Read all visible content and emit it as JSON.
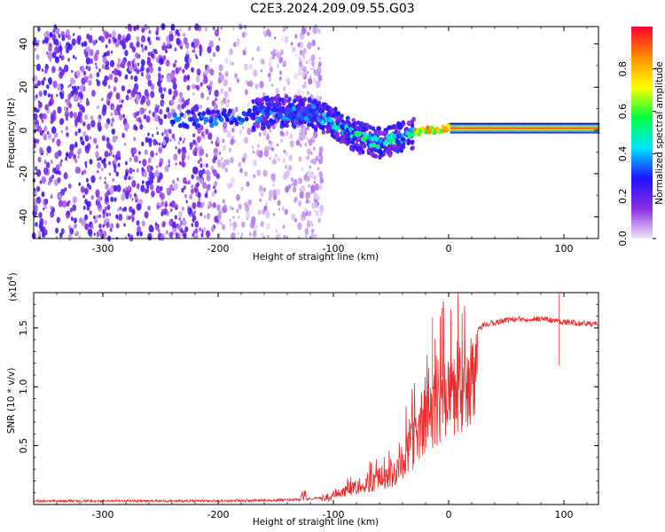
{
  "title": "C2E3.2024.209.09.55.G03",
  "chart_data": [
    {
      "type": "heatmap",
      "xlabel": "Height of straight line (km)",
      "ylabel": "Frequency (Hz)",
      "xlim": [
        -360,
        130
      ],
      "ylim": [
        -50,
        48
      ],
      "xticks": [
        -300,
        -200,
        -100,
        0,
        100
      ],
      "yticks": [
        -40,
        -20,
        0,
        20,
        40
      ],
      "colorbar": {
        "label": "Normalized spectral amplitude",
        "range": [
          0,
          1
        ],
        "ticks": [
          0.0,
          0.2,
          0.4,
          0.6,
          0.8
        ],
        "colors": [
          "#f3e6fb",
          "#8a2be2",
          "#1e14ff",
          "#00e5ff",
          "#00ff40",
          "#ffff00",
          "#ff8c00",
          "#ff0030"
        ]
      },
      "ridge": [
        {
          "x": -230,
          "y": 5
        },
        {
          "x": -180,
          "y": 6
        },
        {
          "x": -150,
          "y": 9
        },
        {
          "x": -120,
          "y": 8
        },
        {
          "x": -100,
          "y": 4
        },
        {
          "x": -80,
          "y": -3
        },
        {
          "x": -60,
          "y": -6
        },
        {
          "x": -40,
          "y": -3
        },
        {
          "x": -20,
          "y": 0
        },
        {
          "x": 0,
          "y": 1
        },
        {
          "x": 40,
          "y": 1
        },
        {
          "x": 80,
          "y": 1
        },
        {
          "x": 130,
          "y": 1
        }
      ]
    },
    {
      "type": "line",
      "xlabel": "Height of straight line (km)",
      "ylabel": "SNR (10 * v/v)",
      "scale_note": "(x10",
      "scale_exp": "4",
      "scale_close": ")",
      "xlim": [
        -360,
        130
      ],
      "ylim": [
        0,
        1.8
      ],
      "xticks": [
        -300,
        -200,
        -100,
        0,
        100
      ],
      "yticks": [
        0.5,
        1.0,
        1.5
      ],
      "ytick_labels": [
        "0.5",
        "1.0",
        "1.5"
      ],
      "color": "#ee2a2a",
      "envelope": [
        {
          "x": -360,
          "y": 0.03
        },
        {
          "x": -200,
          "y": 0.03
        },
        {
          "x": -130,
          "y": 0.04
        },
        {
          "x": -105,
          "y": 0.06
        },
        {
          "x": -90,
          "y": 0.15
        },
        {
          "x": -70,
          "y": 0.22
        },
        {
          "x": -50,
          "y": 0.3
        },
        {
          "x": -35,
          "y": 0.55
        },
        {
          "x": -20,
          "y": 0.9
        },
        {
          "x": -5,
          "y": 1.1
        },
        {
          "x": 10,
          "y": 1.25
        },
        {
          "x": 20,
          "y": 1.42
        },
        {
          "x": 30,
          "y": 1.52
        },
        {
          "x": 50,
          "y": 1.57
        },
        {
          "x": 80,
          "y": 1.58
        },
        {
          "x": 100,
          "y": 1.55
        },
        {
          "x": 130,
          "y": 1.53
        }
      ],
      "spikes": [
        {
          "x": 96,
          "y": 1.85
        },
        {
          "x": 96,
          "y": 1.18
        },
        {
          "x": -6,
          "y": 1.67
        },
        {
          "x": -14,
          "y": 1.59
        }
      ]
    }
  ]
}
